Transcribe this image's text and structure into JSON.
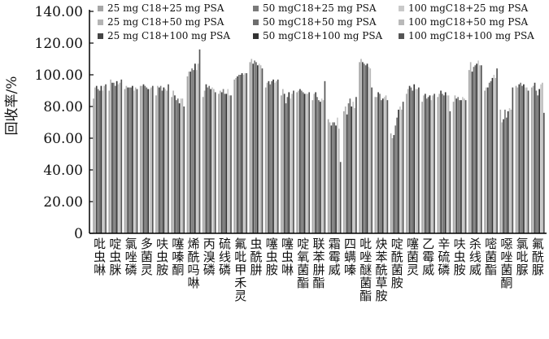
{
  "chart_data": {
    "type": "bar",
    "ylabel": "回收率/%",
    "xlabel": "",
    "title": "",
    "ylim": [
      0,
      140
    ],
    "yticks": [
      "0",
      "20.00",
      "40.00",
      "60.00",
      "80.00",
      "100.00",
      "120.00",
      "140.00"
    ],
    "legend_position": "top",
    "grid": false,
    "categories": [
      "吡虫啉",
      "啶虫脒",
      "氯唑磷",
      "多菌灵",
      "呋虫胺",
      "噻嗪酮",
      "烯酰吗啉",
      "丙溴磷",
      "硫线磷",
      "氟吡甲禾灵",
      "虫酰肼",
      "噻虫胺",
      "噻虫啉",
      "啶氧菌酯",
      "联苯肼酯",
      "霜霉威",
      "四螨嗪",
      "吡唑醚菌酯",
      "炔苯酰草胺",
      "啶酰菌胺",
      "噻菌灵",
      "乙霉威",
      "辛硫磷",
      "呋虫胺",
      "杀线威",
      "嘧菌酯",
      "噁唑菌酮",
      "氯吡脲",
      "氟酰脲"
    ],
    "series": [
      {
        "name": "25 mg C18+25 mg PSA",
        "color": "#a6a6a6",
        "values": [
          85,
          90,
          91,
          93,
          87,
          86,
          99,
          86,
          88,
          97,
          108,
          92,
          87,
          89,
          84,
          72,
          77,
          108,
          86,
          63,
          88,
          83,
          86,
          83,
          103,
          90,
          78,
          93,
          92
        ]
      },
      {
        "name": "25 mg C18+50 mg PSA",
        "color": "#b4b4b4",
        "values": [
          92,
          97,
          93,
          93,
          93,
          90,
          102,
          90,
          90,
          98,
          110,
          95,
          91,
          90,
          88,
          70,
          80,
          110,
          86,
          60,
          91,
          87,
          88,
          87,
          108,
          92,
          70,
          92,
          93
        ]
      },
      {
        "name": "25 mg C18+100 mg PSA",
        "color": "#444444",
        "values": [
          93,
          95,
          92,
          94,
          92,
          87,
          102,
          94,
          89,
          99,
          107,
          96,
          88,
          91,
          89,
          68,
          75,
          108,
          89,
          62,
          93,
          88,
          90,
          85,
          102,
          92,
          72,
          94,
          95
        ]
      },
      {
        "name": "50 mgC18+25 mg PSA",
        "color": "#7a7a7a",
        "values": [
          91,
          95,
          92,
          93,
          93,
          84,
          104,
          92,
          91,
          100,
          109,
          94,
          82,
          90,
          86,
          70,
          82,
          107,
          88,
          68,
          92,
          85,
          88,
          86,
          105,
          95,
          78,
          95,
          90
        ]
      },
      {
        "name": "50 mgC18+50 mg PSA",
        "color": "#6e6e6e",
        "values": [
          90,
          93,
          92,
          92,
          90,
          85,
          103,
          93,
          88,
          100,
          108,
          96,
          86,
          89,
          84,
          70,
          85,
          106,
          84,
          73,
          90,
          86,
          87,
          84,
          106,
          96,
          73,
          93,
          87
        ]
      },
      {
        "name": "50 mgC18+100 mg PSA",
        "color": "#333333",
        "values": [
          93,
          96,
          93,
          91,
          92,
          82,
          107,
          91,
          88,
          101,
          106,
          97,
          89,
          88,
          83,
          68,
          80,
          107,
          85,
          78,
          94,
          87,
          89,
          84,
          107,
          98,
          77,
          94,
          91
        ]
      },
      {
        "name": "100 mgC18+25 mg PSA",
        "color": "#c9c9c9",
        "values": [
          90,
          94,
          90,
          91,
          91,
          85,
          103,
          92,
          91,
          100,
          107,
          95,
          85,
          88,
          85,
          73,
          83,
          105,
          86,
          80,
          91,
          84,
          87,
          86,
          109,
          100,
          79,
          92,
          94
        ]
      },
      {
        "name": "100 mgC18+50 mg PSA",
        "color": "#b9b9b9",
        "values": [
          93,
          95,
          92,
          92,
          90,
          85,
          107,
          91,
          87,
          101,
          106,
          96,
          88,
          88,
          84,
          66,
          79,
          104,
          87,
          78,
          91,
          87,
          87,
          85,
          106,
          98,
          78,
          92,
          95
        ]
      },
      {
        "name": "100 mgC18+100 mg PSA",
        "color": "#555555",
        "values": [
          94,
          97,
          91,
          93,
          94,
          80,
          116,
          89,
          87,
          101,
          104,
          97,
          90,
          89,
          96,
          45,
          86,
          92,
          84,
          83,
          92,
          88,
          77,
          84,
          106,
          104,
          92,
          90,
          76
        ]
      }
    ]
  }
}
